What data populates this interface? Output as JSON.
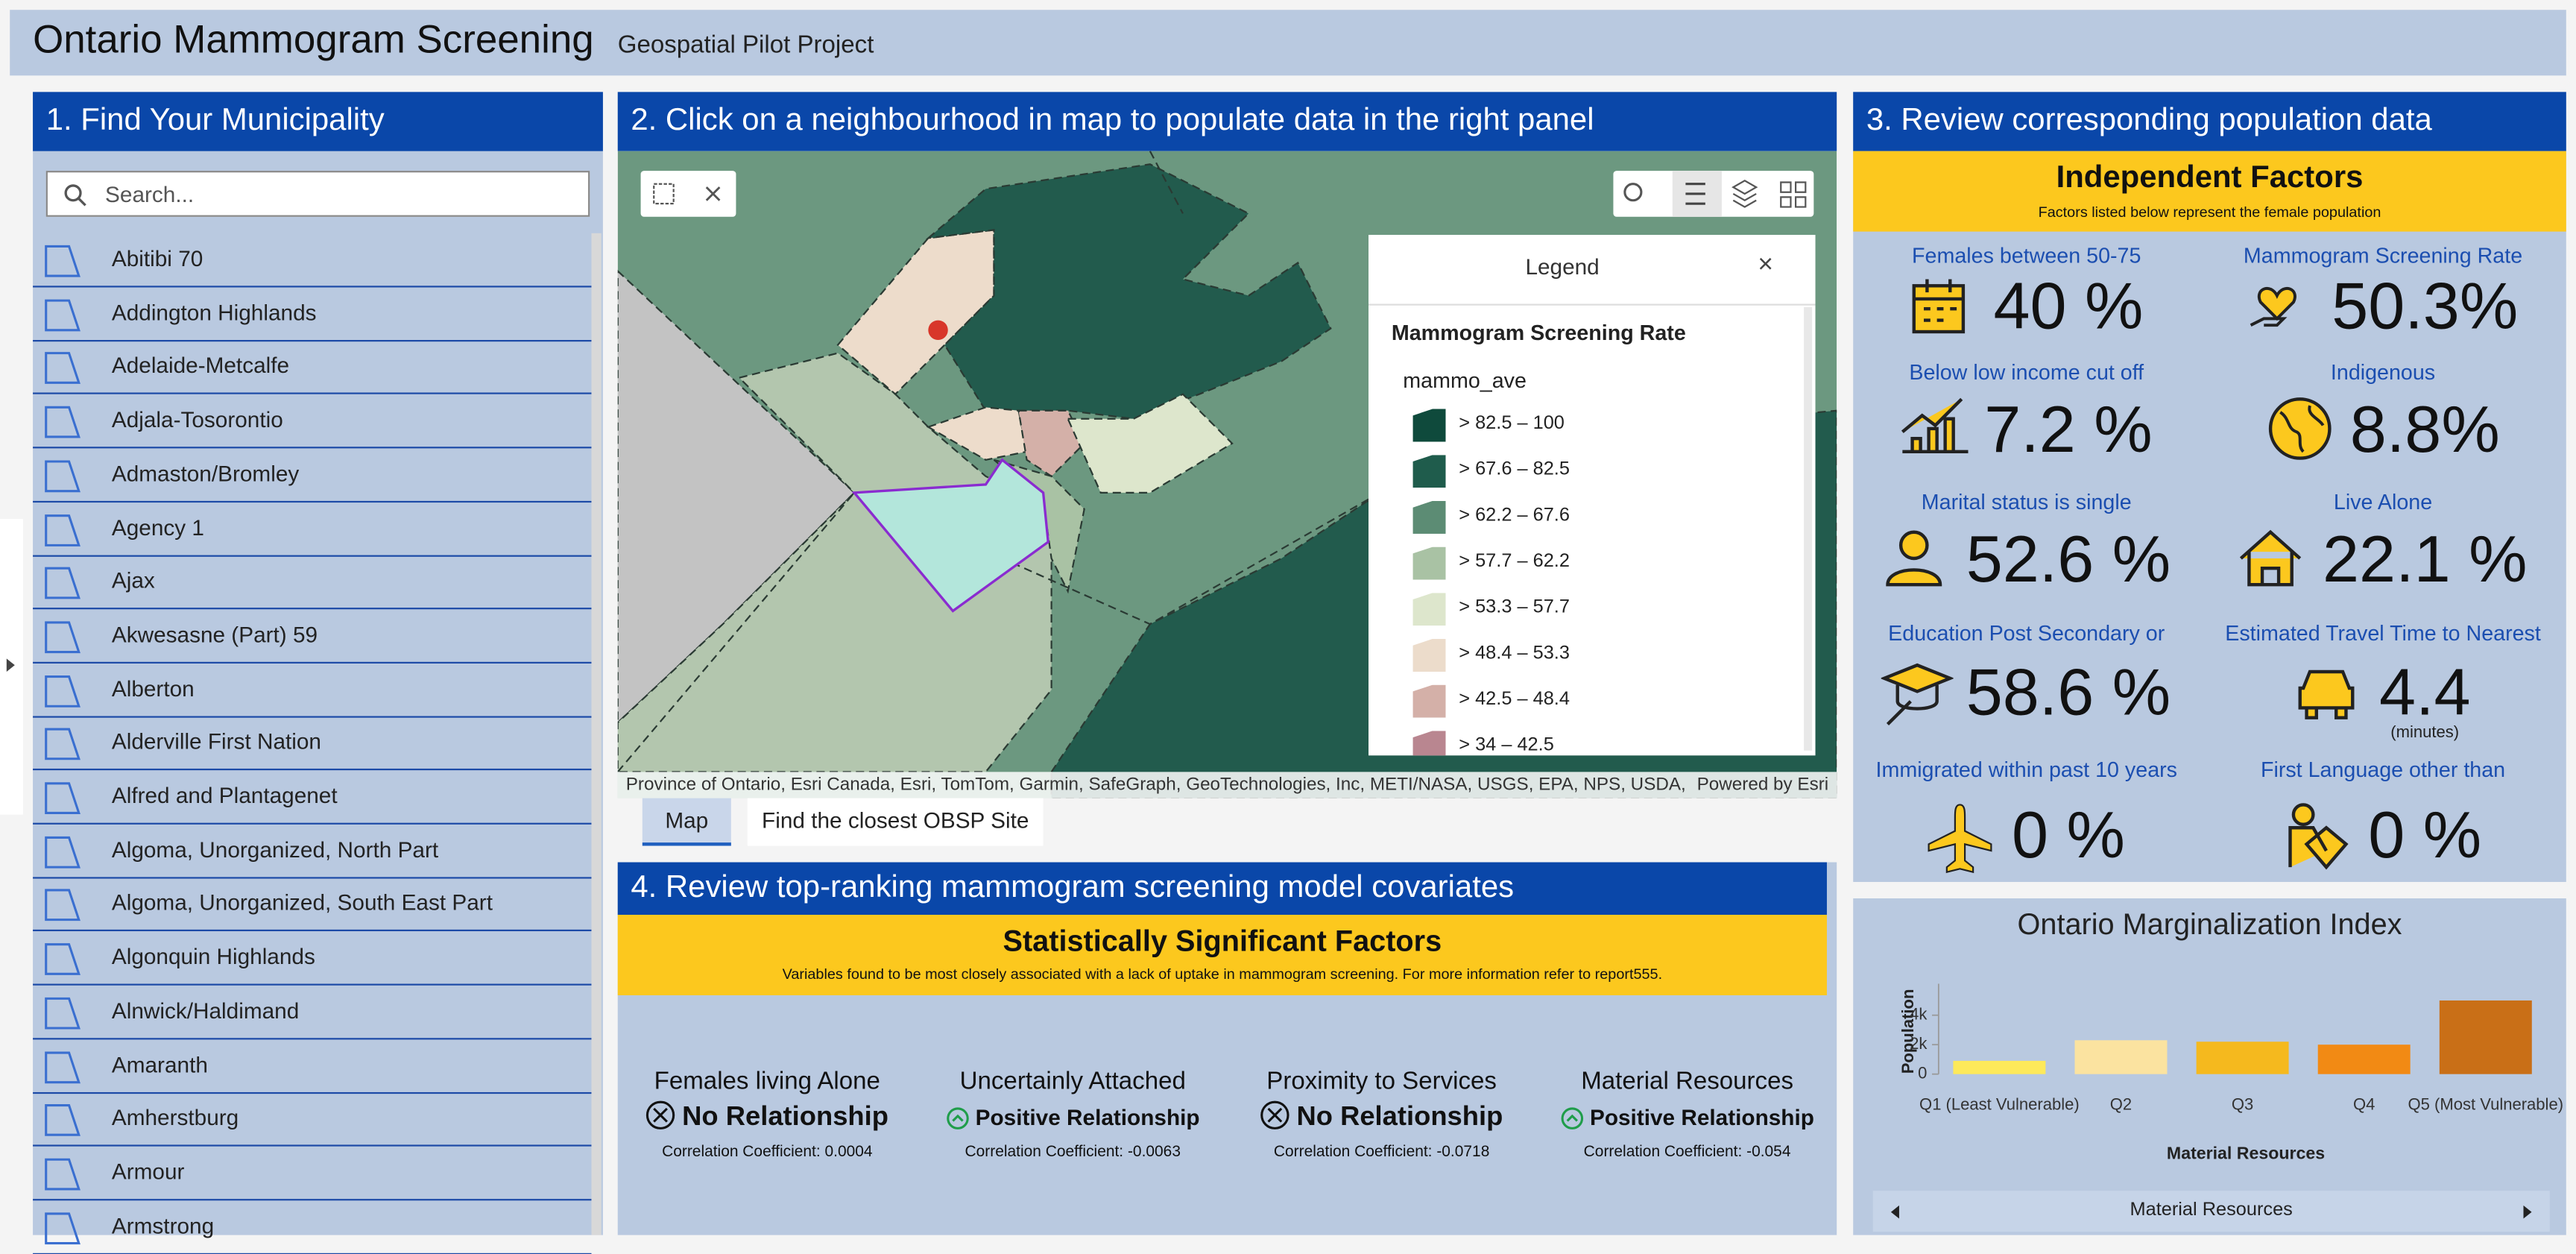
{
  "header": {
    "title": "Ontario Mammogram Screening",
    "subtitle": "Geospatial Pilot Project"
  },
  "panel1": {
    "title": "1. Find Your Municipality",
    "search_placeholder": "Search...",
    "municipalities": [
      "Abitibi 70",
      "Addington Highlands",
      "Adelaide-Metcalfe",
      "Adjala-Tosorontio",
      "Admaston/Bromley",
      "Agency 1",
      "Ajax",
      "Akwesasne (Part) 59",
      "Alberton",
      "Alderville First Nation",
      "Alfred and Plantagenet",
      "Algoma, Unorganized, North Part",
      "Algoma, Unorganized, South East Part",
      "Algonquin Highlands",
      "Alnwick/Haldimand",
      "Amaranth",
      "Amherstburg",
      "Armour",
      "Armstrong"
    ]
  },
  "panel2": {
    "title": "2. Click on a neighbourhood in map to populate data in the right panel",
    "legend": {
      "title": "Legend",
      "layer": "Mammogram Screening Rate",
      "field": "mammo_ave",
      "classes": [
        {
          "label": "> 82.5 – 100",
          "color": "#0f4a3c"
        },
        {
          "label": "> 67.6 – 82.5",
          "color": "#1f5c4c"
        },
        {
          "label": "> 62.2 – 67.6",
          "color": "#5c8c74"
        },
        {
          "label": "> 57.7 – 62.2",
          "color": "#a9c2a4"
        },
        {
          "label": "> 53.3 – 57.7",
          "color": "#dde6cc"
        },
        {
          "label": "> 48.4 – 53.3",
          "color": "#ecdccb"
        },
        {
          "label": "> 42.5 – 48.4",
          "color": "#d4b0a8"
        },
        {
          "label": "> 34 – 42.5",
          "color": "#b98690"
        }
      ]
    },
    "attribution": "Province of Ontario, Esri Canada, Esri, TomTom, Garmin, SafeGraph, GeoTechnologies, Inc, METI/NASA, USGS, EPA, NPS, USDA, ...",
    "powered_by": "Powered by Esri",
    "tabs": [
      "Map",
      "Find the closest OBSP Site"
    ]
  },
  "panel3": {
    "title": "3. Review corresponding population data",
    "banner_title": "Independent Factors",
    "banner_subtitle": "Factors listed below represent the female population",
    "factors": [
      {
        "label": "Females between 50-75",
        "value": "40 %"
      },
      {
        "label": "Mammogram Screening Rate",
        "value": "50.3%"
      },
      {
        "label": "Below low income cut off",
        "value": "7.2 %"
      },
      {
        "label": "Indigenous",
        "value": "8.8%"
      },
      {
        "label": "Marital status is single",
        "value": "52.6 %"
      },
      {
        "label": "Live Alone",
        "value": "22.1 %"
      },
      {
        "label": "Education Post Secondary or",
        "value": "58.6 %"
      },
      {
        "label": "Estimated Travel Time to Nearest",
        "value": "4.4",
        "unit": "(minutes)"
      },
      {
        "label": "Immigrated within past 10 years",
        "value": "0 %"
      },
      {
        "label": "First Language other than",
        "value": "0 %"
      }
    ]
  },
  "panel4": {
    "title": "4. Review top-ranking mammogram screening model covariates",
    "banner_title": "Statistically Significant Factors",
    "banner_subtitle": "Variables found to be most closely associated with a lack of uptake in mammogram screening. For more information refer to report555.",
    "covariates": [
      {
        "name": "Females living Alone",
        "relationship": "No Relationship",
        "coefficient": "Correlation Coefficient: 0.0004"
      },
      {
        "name": "Uncertainly Attached",
        "relationship": "Positive Relationship",
        "coefficient": "Correlation Coefficient: -0.0063"
      },
      {
        "name": "Proximity to Services",
        "relationship": "No Relationship",
        "coefficient": "Correlation Coefficient: -0.0718"
      },
      {
        "name": "Material Resources",
        "relationship": "Positive Relationship",
        "coefficient": "Correlation Coefficient: -0.054"
      }
    ]
  },
  "panel5": {
    "selector": "Material Resources"
  },
  "chart_data": {
    "type": "bar",
    "title": "Ontario Marginalization Index",
    "y_label": "Population",
    "x_label": "Material Resources",
    "categories": [
      "Q1 (Least Vulnerable)",
      "Q2",
      "Q3",
      "Q4",
      "Q5 (Most Vulnerable)"
    ],
    "values": [
      900,
      2300,
      2200,
      2000,
      5000
    ],
    "colors": [
      "#fde95a",
      "#fbe3a0",
      "#f5b91e",
      "#f28a14",
      "#c96f17"
    ],
    "ylim": [
      0,
      5800
    ],
    "yticks": [
      0,
      {
        "value": 2000,
        "label": "2k"
      },
      {
        "value": 4000,
        "label": "4k"
      }
    ]
  }
}
